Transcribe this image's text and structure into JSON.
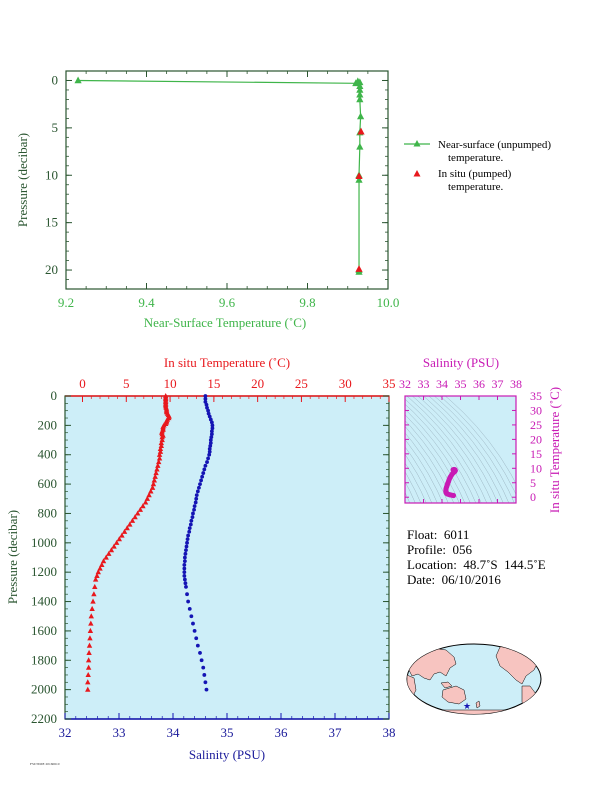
{
  "colors": {
    "green": "#3fb54a",
    "red": "#e8181d",
    "blue": "#1414b4",
    "magenta": "#c81ab4",
    "dark_axis": "#2a5530",
    "panel_bg": "#cdeef8"
  },
  "chart_data": [
    {
      "id": "top",
      "type": "line",
      "xlabel": "Near-Surface Temperature (˚C)",
      "ylabel": "Pressure (decibar)",
      "xlim": [
        9.2,
        10.0
      ],
      "ylim": [
        22,
        -1
      ],
      "x_ticks": [
        "9.2",
        "9.4",
        "9.6",
        "9.8",
        "10.0"
      ],
      "y_ticks": [
        "0",
        "5",
        "10",
        "15",
        "20"
      ],
      "grid": false,
      "legend_position": "right",
      "series": [
        {
          "name": "Near-surface (unpumped)",
          "name_line2": "temperature.",
          "marker": "triangle",
          "color": "#3fb54a",
          "points": [
            [
              9.23,
              0.0
            ],
            [
              9.92,
              0.3
            ],
            [
              9.925,
              0.1
            ],
            [
              9.93,
              0.2
            ],
            [
              9.93,
              0.6
            ],
            [
              9.93,
              1.0
            ],
            [
              9.93,
              1.5
            ],
            [
              9.93,
              2.0
            ],
            [
              9.932,
              3.8
            ],
            [
              9.93,
              5.5
            ],
            [
              9.93,
              7.0
            ],
            [
              9.928,
              10.0
            ],
            [
              9.928,
              10.5
            ],
            [
              9.928,
              20.0
            ],
            [
              9.928,
              20.2
            ]
          ]
        },
        {
          "name": "In situ (pumped)",
          "name_line2": "temperature.",
          "marker": "triangle",
          "color": "#e8181d",
          "points": [
            [
              9.933,
              5.4
            ],
            [
              9.928,
              10.1
            ],
            [
              9.928,
              19.9
            ]
          ]
        }
      ]
    },
    {
      "id": "profile",
      "type": "scatter",
      "ylabel": "Pressure (decibar)",
      "ylim": [
        2200,
        0
      ],
      "y_ticks": [
        "0",
        "200",
        "400",
        "600",
        "800",
        "1000",
        "1200",
        "1400",
        "1600",
        "1800",
        "2000",
        "2200"
      ],
      "temperature_axis": {
        "label": "In situ Temperature (˚C)",
        "lim": [
          -2,
          35
        ],
        "ticks": [
          "0",
          "5",
          "10",
          "15",
          "20",
          "25",
          "30",
          "35"
        ]
      },
      "salinity_axis": {
        "label": "Salinity (PSU)",
        "lim": [
          32,
          38
        ],
        "ticks": [
          "32",
          "33",
          "34",
          "35",
          "36",
          "37",
          "38"
        ]
      },
      "grid": false,
      "temperature_points": [
        [
          9.5,
          0
        ],
        [
          9.5,
          10
        ],
        [
          9.5,
          20
        ],
        [
          9.5,
          30
        ],
        [
          9.5,
          40
        ],
        [
          9.5,
          50
        ],
        [
          9.5,
          60
        ],
        [
          9.5,
          70
        ],
        [
          9.55,
          80
        ],
        [
          9.6,
          90
        ],
        [
          9.6,
          100
        ],
        [
          9.6,
          110
        ],
        [
          9.7,
          120
        ],
        [
          9.8,
          130
        ],
        [
          9.9,
          140
        ],
        [
          9.85,
          150
        ],
        [
          9.7,
          160
        ],
        [
          9.6,
          170
        ],
        [
          9.6,
          180
        ],
        [
          9.5,
          190
        ],
        [
          9.3,
          200
        ],
        [
          9.2,
          210
        ],
        [
          9.2,
          220
        ],
        [
          9.2,
          230
        ],
        [
          9.1,
          240
        ],
        [
          9.05,
          250
        ],
        [
          9.1,
          260
        ],
        [
          9.2,
          270
        ],
        [
          9.1,
          280
        ],
        [
          9.1,
          300
        ],
        [
          9.0,
          320
        ],
        [
          9.0,
          340
        ],
        [
          8.9,
          360
        ],
        [
          8.9,
          380
        ],
        [
          8.8,
          400
        ],
        [
          8.8,
          425
        ],
        [
          8.7,
          450
        ],
        [
          8.6,
          475
        ],
        [
          8.5,
          500
        ],
        [
          8.4,
          525
        ],
        [
          8.3,
          550
        ],
        [
          8.2,
          575
        ],
        [
          8.1,
          600
        ],
        [
          8.0,
          625
        ],
        [
          7.8,
          650
        ],
        [
          7.6,
          675
        ],
        [
          7.4,
          700
        ],
        [
          7.2,
          725
        ],
        [
          6.9,
          750
        ],
        [
          6.6,
          775
        ],
        [
          6.3,
          800
        ],
        [
          6.0,
          825
        ],
        [
          5.7,
          850
        ],
        [
          5.4,
          875
        ],
        [
          5.1,
          900
        ],
        [
          4.8,
          925
        ],
        [
          4.5,
          950
        ],
        [
          4.2,
          975
        ],
        [
          3.9,
          1000
        ],
        [
          3.6,
          1025
        ],
        [
          3.3,
          1050
        ],
        [
          3.0,
          1075
        ],
        [
          2.7,
          1100
        ],
        [
          2.4,
          1125
        ],
        [
          2.2,
          1150
        ],
        [
          2.0,
          1175
        ],
        [
          1.8,
          1200
        ],
        [
          1.65,
          1225
        ],
        [
          1.5,
          1250
        ],
        [
          1.4,
          1300
        ],
        [
          1.3,
          1350
        ],
        [
          1.2,
          1400
        ],
        [
          1.1,
          1450
        ],
        [
          1.0,
          1500
        ],
        [
          0.95,
          1550
        ],
        [
          0.9,
          1600
        ],
        [
          0.85,
          1650
        ],
        [
          0.8,
          1700
        ],
        [
          0.75,
          1750
        ],
        [
          0.7,
          1800
        ],
        [
          0.7,
          1850
        ],
        [
          0.65,
          1900
        ],
        [
          0.6,
          1950
        ],
        [
          0.6,
          2000
        ]
      ],
      "salinity_points": [
        [
          34.6,
          0
        ],
        [
          34.6,
          20
        ],
        [
          34.6,
          40
        ],
        [
          34.62,
          60
        ],
        [
          34.63,
          80
        ],
        [
          34.65,
          100
        ],
        [
          34.66,
          120
        ],
        [
          34.68,
          140
        ],
        [
          34.7,
          160
        ],
        [
          34.72,
          180
        ],
        [
          34.73,
          200
        ],
        [
          34.73,
          220
        ],
        [
          34.72,
          240
        ],
        [
          34.72,
          260
        ],
        [
          34.71,
          280
        ],
        [
          34.7,
          300
        ],
        [
          34.7,
          320
        ],
        [
          34.69,
          340
        ],
        [
          34.68,
          360
        ],
        [
          34.68,
          380
        ],
        [
          34.67,
          400
        ],
        [
          34.65,
          425
        ],
        [
          34.63,
          450
        ],
        [
          34.6,
          475
        ],
        [
          34.58,
          500
        ],
        [
          34.56,
          525
        ],
        [
          34.54,
          550
        ],
        [
          34.52,
          575
        ],
        [
          34.5,
          600
        ],
        [
          34.48,
          625
        ],
        [
          34.46,
          650
        ],
        [
          34.44,
          675
        ],
        [
          34.43,
          700
        ],
        [
          34.42,
          725
        ],
        [
          34.4,
          750
        ],
        [
          34.39,
          775
        ],
        [
          34.37,
          800
        ],
        [
          34.36,
          825
        ],
        [
          34.34,
          850
        ],
        [
          34.33,
          875
        ],
        [
          34.31,
          900
        ],
        [
          34.3,
          925
        ],
        [
          34.28,
          950
        ],
        [
          34.27,
          975
        ],
        [
          34.26,
          1000
        ],
        [
          34.25,
          1025
        ],
        [
          34.24,
          1050
        ],
        [
          34.23,
          1075
        ],
        [
          34.22,
          1100
        ],
        [
          34.22,
          1125
        ],
        [
          34.21,
          1150
        ],
        [
          34.21,
          1175
        ],
        [
          34.21,
          1200
        ],
        [
          34.21,
          1225
        ],
        [
          34.22,
          1250
        ],
        [
          34.23,
          1275
        ],
        [
          34.24,
          1300
        ],
        [
          34.26,
          1350
        ],
        [
          34.28,
          1400
        ],
        [
          34.31,
          1450
        ],
        [
          34.34,
          1500
        ],
        [
          34.37,
          1550
        ],
        [
          34.4,
          1600
        ],
        [
          34.43,
          1650
        ],
        [
          34.46,
          1700
        ],
        [
          34.5,
          1750
        ],
        [
          34.53,
          1800
        ],
        [
          34.56,
          1850
        ],
        [
          34.58,
          1900
        ],
        [
          34.6,
          1950
        ],
        [
          34.62,
          2000
        ]
      ]
    },
    {
      "id": "ts_diagram",
      "type": "scatter",
      "xlabel": "Salinity (PSU)",
      "ylabel": "In situ Temperature (˚C)",
      "xlim": [
        32,
        38
      ],
      "ylim": [
        -2,
        35
      ],
      "x_ticks": [
        "32",
        "33",
        "34",
        "35",
        "36",
        "37",
        "38"
      ],
      "y_ticks": [
        "0",
        "5",
        "10",
        "15",
        "20",
        "25",
        "30",
        "35"
      ],
      "grid": false,
      "points": [
        [
          34.6,
          9.5
        ],
        [
          34.65,
          9.6
        ],
        [
          34.7,
          9.5
        ],
        [
          34.72,
          9.2
        ],
        [
          34.68,
          8.8
        ],
        [
          34.6,
          8.4
        ],
        [
          34.55,
          8.0
        ],
        [
          34.5,
          7.5
        ],
        [
          34.45,
          7.0
        ],
        [
          34.42,
          6.6
        ],
        [
          34.38,
          6.0
        ],
        [
          34.35,
          5.4
        ],
        [
          34.31,
          4.8
        ],
        [
          34.28,
          4.2
        ],
        [
          34.25,
          3.6
        ],
        [
          34.22,
          3.0
        ],
        [
          34.21,
          2.4
        ],
        [
          34.21,
          2.0
        ],
        [
          34.22,
          1.6
        ],
        [
          34.25,
          1.3
        ],
        [
          34.3,
          1.1
        ],
        [
          34.37,
          0.95
        ],
        [
          34.45,
          0.8
        ],
        [
          34.53,
          0.7
        ],
        [
          34.62,
          0.6
        ]
      ]
    }
  ],
  "float_info": {
    "float_label": "Float:",
    "float": "6011",
    "profile_label": "Profile:",
    "profile": "056",
    "location_label": "Location:",
    "location_lat": "48.7˚S",
    "location_lon": "144.5˚E",
    "date_label": "Date:",
    "date": "06/10/2016"
  },
  "footer_text": "FSI/TIME 20160610"
}
